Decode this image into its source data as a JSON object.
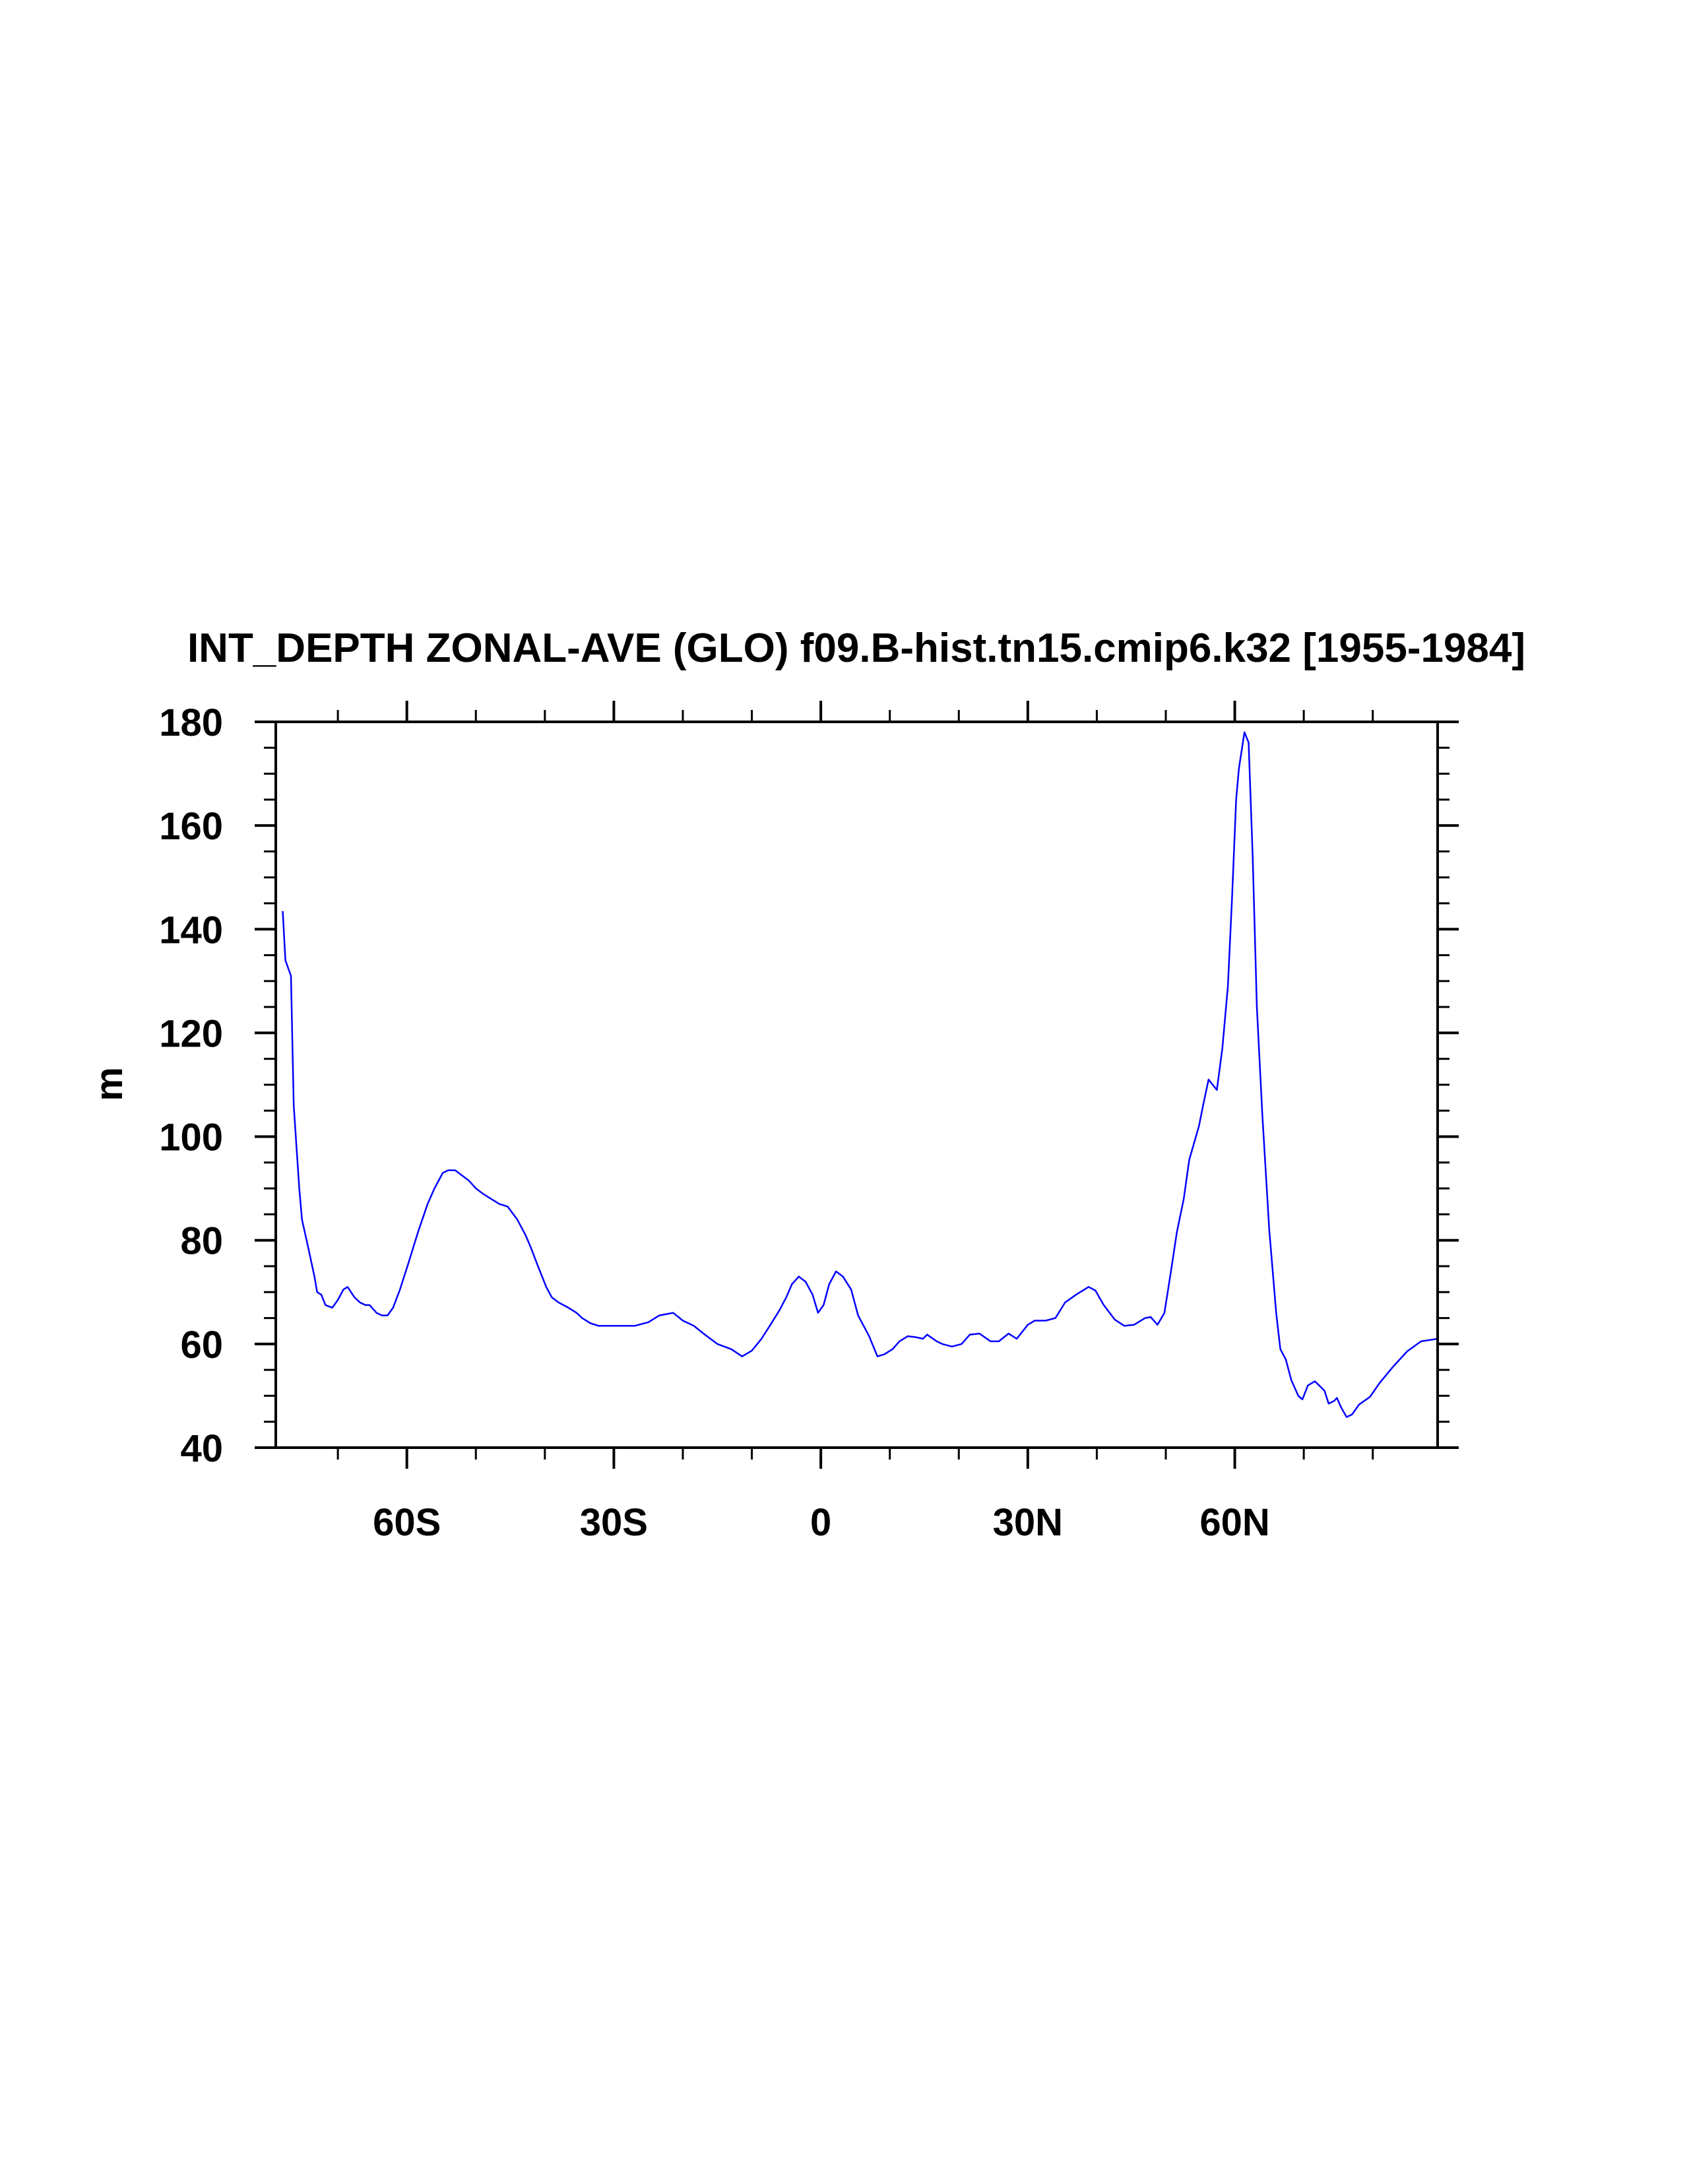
{
  "chart_data": {
    "type": "line",
    "title": "INT_DEPTH ZONAL-AVE (GLO) f09.B-hist.tn15.cmip6.k32 [1955-1984]",
    "xlabel": "",
    "ylabel": "m",
    "xlim": [
      -79,
      89.4
    ],
    "ylim": [
      40,
      180
    ],
    "x_ticks": [
      -60,
      -30,
      0,
      30,
      60
    ],
    "x_tick_labels": [
      "60S",
      "30S",
      "0",
      "30N",
      "60N"
    ],
    "x_minor_step": 10,
    "y_ticks": [
      40,
      60,
      80,
      100,
      120,
      140,
      160,
      180
    ],
    "y_tick_labels": [
      "40",
      "60",
      "80",
      "100",
      "120",
      "140",
      "160",
      "180"
    ],
    "y_minor_step": 5,
    "grid": false,
    "series": [
      {
        "name": "INT_DEPTH",
        "color": "#0000ff",
        "x": [
          -78,
          -77.6,
          -76.8,
          -76.4,
          -75.6,
          -75.2,
          -74.2,
          -73.4,
          -73,
          -72.4,
          -71.8,
          -70.8,
          -70,
          -69.2,
          -68.6,
          -67.6,
          -66.8,
          -66,
          -65.4,
          -64.4,
          -63.6,
          -62.8,
          -62,
          -61,
          -59.8,
          -58.4,
          -57,
          -56,
          -55.4,
          -54.8,
          -54,
          -53,
          -52,
          -51,
          -50,
          -49,
          -47.8,
          -46.6,
          -45.4,
          -44,
          -42.8,
          -42,
          -41,
          -39.8,
          -39,
          -38,
          -36.6,
          -35.4,
          -34.6,
          -33.4,
          -32.2,
          -31,
          -29,
          -27,
          -25,
          -23.4,
          -21.4,
          -20,
          -18.4,
          -17,
          -15,
          -13,
          -11.4,
          -10,
          -8.6,
          -7.4,
          -6,
          -5,
          -4.2,
          -3.2,
          -2.2,
          -1.2,
          -0.4,
          0.4,
          1.2,
          2.2,
          3.2,
          4.4,
          5.4,
          7,
          8.2,
          9.2,
          10.4,
          11.4,
          12.6,
          13.8,
          14.8,
          15.4,
          16.8,
          17.6,
          19,
          20.4,
          21.6,
          23,
          24.6,
          25.8,
          27.2,
          28.4,
          30,
          31,
          32.6,
          34,
          35.4,
          37,
          38.8,
          39.8,
          41,
          42.6,
          44,
          45.4,
          47,
          47.8,
          48.8,
          49.8,
          50.8,
          51.6,
          52.6,
          53.4,
          54.8,
          55.4,
          56.2,
          56.8,
          57.4,
          58.2,
          59,
          59.6,
          60.2,
          60.6,
          61.4,
          62,
          62.6,
          63.2,
          64,
          65,
          66,
          66.6,
          67.4,
          68.2,
          69.2,
          69.8,
          70.6,
          71.6,
          73,
          73.6,
          74.4,
          74.8,
          75.4,
          76.2,
          77,
          78,
          79.6,
          81,
          83,
          85,
          87,
          89.4
        ],
        "y": [
          143.5,
          134,
          131,
          106,
          90,
          84,
          78,
          73,
          70,
          69.5,
          67.5,
          67,
          68.5,
          70.5,
          71,
          69,
          68,
          67.5,
          67.5,
          66,
          65.5,
          65.5,
          67,
          70.5,
          75.5,
          81.5,
          87,
          90,
          91.5,
          93,
          93.5,
          93.5,
          92.5,
          91.5,
          90,
          89,
          88,
          87,
          86.5,
          84,
          81,
          78.5,
          75,
          71,
          69,
          68,
          67,
          66,
          65,
          64,
          63.5,
          63.5,
          63.5,
          63.5,
          64.2,
          65.5,
          66,
          64.5,
          63.5,
          62,
          60,
          59,
          57.6,
          58.7,
          61,
          63.5,
          66.5,
          69,
          71.5,
          73,
          72,
          69.5,
          66,
          67.5,
          71.5,
          74,
          73,
          70.5,
          65.5,
          61.5,
          57.6,
          58,
          59,
          60.5,
          61.5,
          61.3,
          61,
          61.8,
          60.5,
          60,
          59.5,
          60,
          61.8,
          62,
          60.5,
          60.5,
          62,
          61,
          63.7,
          64.5,
          64.5,
          65,
          68,
          69.5,
          71,
          70.3,
          67.5,
          64.7,
          63.5,
          63.7,
          65,
          65.2,
          63.7,
          66,
          74.5,
          81.5,
          88,
          95.5,
          102,
          106,
          111,
          110,
          109,
          117,
          129,
          146,
          165,
          171,
          178,
          176,
          154,
          125,
          104,
          82,
          66,
          59,
          57,
          53,
          50,
          49.3,
          52,
          52.8,
          51,
          48.5,
          49,
          49.6,
          47.8,
          45.9,
          46.4,
          48.3,
          49.8,
          52.5,
          55.7,
          58.6,
          60.5,
          61
        ]
      }
    ]
  }
}
